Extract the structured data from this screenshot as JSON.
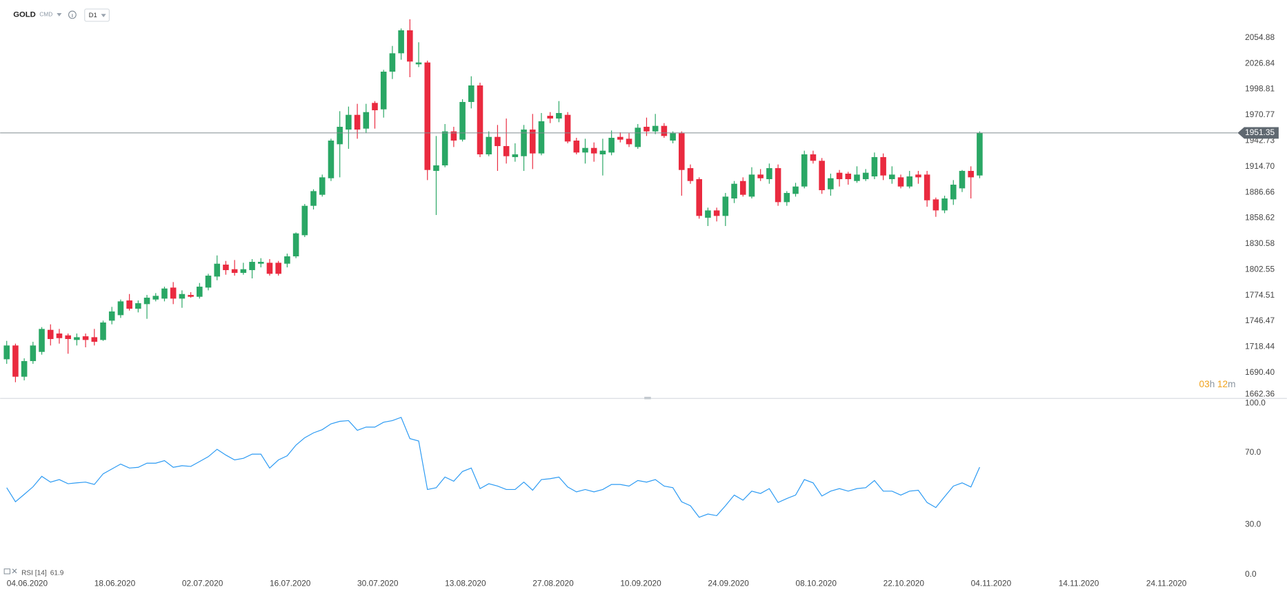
{
  "header": {
    "symbol": "GOLD",
    "market": "CMD",
    "interval": "D1",
    "countdown_hours": "03",
    "hours_unit": "h",
    "countdown_minutes": "12",
    "minutes_unit": "m"
  },
  "chart_data": [
    {
      "type": "candlestick",
      "up_color": "#2aa765",
      "down_color": "#ea2a3f",
      "current_price": 1951.35,
      "grid": false,
      "xlim": [
        -0.75,
        140.15
      ],
      "xticks": [
        {
          "value": 0,
          "label": "04.06.2020"
        },
        {
          "value": 10,
          "label": "18.06.2020"
        },
        {
          "value": 20,
          "label": "02.07.2020"
        },
        {
          "value": 30,
          "label": "16.07.2020"
        },
        {
          "value": 40,
          "label": "30.07.2020"
        },
        {
          "value": 50,
          "label": "13.08.2020"
        },
        {
          "value": 60,
          "label": "27.08.2020"
        },
        {
          "value": 70,
          "label": "10.09.2020"
        },
        {
          "value": 80,
          "label": "24.09.2020"
        },
        {
          "value": 90,
          "label": "08.10.2020"
        },
        {
          "value": 100,
          "label": "22.10.2020"
        },
        {
          "value": 110,
          "label": "04.11.2020"
        },
        {
          "value": 120,
          "label": "14.11.2020"
        },
        {
          "value": 130,
          "label": "24.11.2020"
        }
      ],
      "ylim": [
        1662.36,
        2096
      ],
      "yticks": [
        2054.88,
        2026.84,
        1998.81,
        1970.77,
        1942.73,
        {
          "value": 1914.7,
          "label": "1914.70"
        },
        1886.66,
        1858.62,
        1830.58,
        1802.55,
        1774.51,
        1746.47,
        1718.44,
        {
          "value": 1690.4,
          "label": "1690.40"
        },
        1662.36
      ],
      "open": [
        1705,
        1720,
        1686,
        1703,
        1713,
        1737,
        1733,
        1731,
        1726,
        1730,
        1729,
        1726,
        1747,
        1753,
        1769,
        1760,
        1765,
        1770,
        1771,
        1783,
        1771,
        1775,
        1773,
        1783,
        1795,
        1808,
        1803,
        1799,
        1802,
        1809,
        1810,
        1810,
        1809,
        1817,
        1840,
        1872,
        1884,
        1902,
        1939,
        1955,
        1971,
        1956,
        1984,
        1977,
        2018,
        2038,
        2063,
        2026,
        2028,
        1910,
        1916,
        1953,
        1944,
        1985,
        2003,
        1928,
        1947,
        1937,
        1925,
        1926,
        1955,
        1929,
        1970,
        1967,
        1971,
        1943,
        1930,
        1935,
        1928,
        1930,
        1947,
        1945,
        1936,
        1958,
        1953,
        1959,
        1943,
        1951,
        1913,
        1901,
        1859,
        1867,
        1861,
        1880,
        1899,
        1882,
        1906,
        1901,
        1913,
        1876,
        1885,
        1893,
        1928,
        1921,
        1890,
        1908,
        1907,
        1899,
        1901,
        1904,
        1925,
        1901,
        1903,
        1893,
        1906,
        1906,
        1879,
        1867,
        1879,
        1891,
        1910,
        1905
      ],
      "high": [
        1725,
        1722,
        1706,
        1724,
        1740,
        1743,
        1738,
        1733,
        1733,
        1733,
        1738,
        1747,
        1762,
        1770,
        1776,
        1769,
        1775,
        1777,
        1784,
        1789,
        1780,
        1778,
        1788,
        1798,
        1818,
        1812,
        1813,
        1810,
        1814,
        1815,
        1814,
        1812,
        1820,
        1843,
        1874,
        1890,
        1906,
        1945,
        1975,
        1980,
        1983,
        1983,
        1986,
        2020,
        2046,
        2065,
        2075,
        2050,
        2030,
        1948,
        1961,
        1958,
        1988,
        2013,
        2006,
        1953,
        1960,
        1967,
        1940,
        1960,
        1972,
        1973,
        1974,
        1986,
        1974,
        1946,
        1945,
        1941,
        1945,
        1954,
        1952,
        1951,
        1961,
        1968,
        1972,
        1962,
        1953,
        1953,
        1917,
        1903,
        1870,
        1870,
        1886,
        1899,
        1903,
        1914,
        1912,
        1918,
        1917,
        1888,
        1897,
        1932,
        1932,
        1924,
        1907,
        1911,
        1909,
        1915,
        1912,
        1930,
        1929,
        1915,
        1906,
        1910,
        1910,
        1910,
        1881,
        1883,
        1900,
        1911,
        1915,
        1953
      ],
      "low": [
        1700,
        1680,
        1682,
        1700,
        1710,
        1720,
        1722,
        1711,
        1720,
        1718,
        1720,
        1725,
        1743,
        1750,
        1758,
        1756,
        1749,
        1768,
        1768,
        1765,
        1761,
        1772,
        1771,
        1780,
        1791,
        1797,
        1796,
        1797,
        1793,
        1805,
        1796,
        1796,
        1805,
        1815,
        1838,
        1868,
        1882,
        1899,
        1903,
        1934,
        1945,
        1951,
        1956,
        1968,
        2010,
        2031,
        2012,
        2023,
        1900,
        1862,
        1914,
        1936,
        1942,
        1978,
        1925,
        1926,
        1910,
        1918,
        1920,
        1910,
        1912,
        1927,
        1962,
        1963,
        1940,
        1928,
        1918,
        1920,
        1905,
        1927,
        1941,
        1936,
        1934,
        1948,
        1950,
        1946,
        1940,
        1883,
        1896,
        1858,
        1850,
        1855,
        1850,
        1875,
        1882,
        1880,
        1899,
        1896,
        1872,
        1872,
        1882,
        1891,
        1918,
        1885,
        1883,
        1893,
        1895,
        1897,
        1899,
        1901,
        1900,
        1896,
        1891,
        1891,
        1896,
        1871,
        1860,
        1864,
        1873,
        1887,
        1880,
        1902
      ],
      "close": [
        1720,
        1686,
        1703,
        1720,
        1738,
        1727,
        1728,
        1727,
        1729,
        1726,
        1724,
        1745,
        1757,
        1768,
        1760,
        1766,
        1772,
        1774,
        1782,
        1771,
        1776,
        1773,
        1784,
        1796,
        1809,
        1802,
        1799,
        1803,
        1811,
        1811,
        1798,
        1798,
        1817,
        1842,
        1872,
        1888,
        1903,
        1943,
        1958,
        1971,
        1955,
        1974,
        1976,
        2018,
        2038,
        2063,
        2029,
        2028,
        1911,
        1916,
        1953,
        1943,
        1985,
        2003,
        1928,
        1947,
        1937,
        1926,
        1928,
        1955,
        1929,
        1964,
        1967,
        1973,
        1942,
        1930,
        1935,
        1929,
        1932,
        1946,
        1944,
        1939,
        1957,
        1953,
        1959,
        1948,
        1951,
        1911,
        1899,
        1861,
        1867,
        1861,
        1882,
        1896,
        1884,
        1906,
        1902,
        1913,
        1876,
        1886,
        1893,
        1928,
        1921,
        1889,
        1902,
        1901,
        1901,
        1906,
        1908,
        1925,
        1905,
        1906,
        1893,
        1904,
        1903,
        1878,
        1867,
        1880,
        1895,
        1910,
        1903,
        1951.35
      ]
    },
    {
      "type": "line",
      "name": "RSI [14]",
      "color": "#2b9af3",
      "ylim": [
        0,
        100
      ],
      "yticks": [
        {
          "value": 100,
          "label": "100.0"
        },
        {
          "value": 70,
          "label": "70.0"
        },
        {
          "value": 30,
          "label": "30.0"
        },
        {
          "value": 0,
          "label": "0.0"
        }
      ],
      "values": [
        50.5,
        42.7,
        46.8,
        51,
        56.8,
        53.6,
        55,
        52.7,
        53.2,
        53.6,
        52.3,
        58.2,
        60.9,
        63.6,
        61.4,
        61.8,
        64.1,
        64.1,
        65.5,
        61.8,
        62.7,
        62.3,
        65,
        67.7,
        71.8,
        68.6,
        65.9,
        66.8,
        69.1,
        69.1,
        61.4,
        65.9,
        68.2,
        74.1,
        78.2,
        80.9,
        82.7,
        85.9,
        87.3,
        87.7,
        82.3,
        84.1,
        84.1,
        86.8,
        87.7,
        89.5,
        77.7,
        76.4,
        49.5,
        50.5,
        56.4,
        54.1,
        59.5,
        61.4,
        50,
        52.7,
        51.4,
        49.5,
        49.5,
        53.6,
        49.1,
        55,
        55.5,
        56.4,
        50.9,
        48.2,
        49.5,
        48.2,
        49.5,
        52.3,
        52.3,
        51.4,
        54.5,
        53.6,
        55,
        51.4,
        50.5,
        42.7,
        40.5,
        34.1,
        35.9,
        35,
        40.5,
        46.4,
        43.6,
        48.6,
        47.3,
        50,
        42.3,
        44.5,
        46.4,
        55,
        53.2,
        45.9,
        48.6,
        50,
        48.6,
        50,
        50.5,
        54.5,
        48.6,
        48.6,
        46.4,
        48.6,
        49.1,
        42.3,
        39.5,
        45.5,
        51.4,
        53.2,
        50.9,
        61.9
      ]
    }
  ]
}
